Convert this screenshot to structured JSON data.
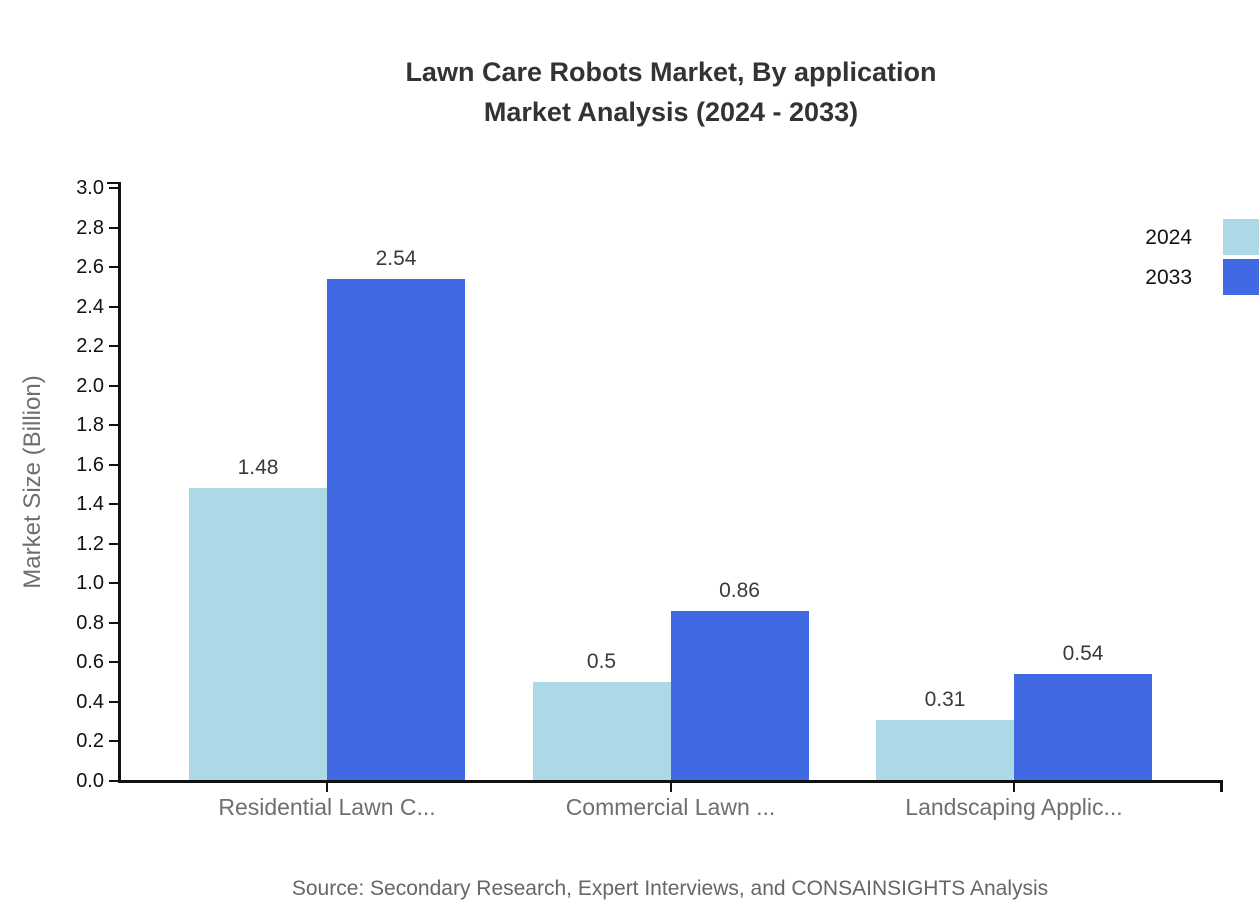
{
  "title": {
    "line1": "Lawn Care Robots Market, By application",
    "line2": "Market Analysis (2024 - 2033)"
  },
  "source": "Source: Secondary Research, Expert Interviews, and CONSAINSIGHTS Analysis",
  "legend": {
    "position": "top-right",
    "items": [
      {
        "label": "2024",
        "color": "#ADD8E6"
      },
      {
        "label": "2033",
        "color": "#4169E1"
      }
    ]
  },
  "chart_data": {
    "type": "bar",
    "title": "Lawn Care Robots Market, By application Market Analysis (2024 - 2033)",
    "categories": [
      "Residential Lawn C...",
      "Commercial Lawn ...",
      "Landscaping Applic..."
    ],
    "series": [
      {
        "name": "2024",
        "color": "#ADD8E6",
        "values": [
          1.48,
          0.5,
          0.31
        ]
      },
      {
        "name": "2033",
        "color": "#4169E1",
        "values": [
          2.54,
          0.86,
          0.54
        ]
      }
    ],
    "xlabel": "",
    "ylabel": "Market Size (Billion)",
    "ylim": [
      0,
      3.0
    ],
    "y_ticks": [
      "0.0",
      "0.2",
      "0.4",
      "0.6",
      "0.8",
      "1.0",
      "1.2",
      "1.4",
      "1.6",
      "1.8",
      "2.0",
      "2.2",
      "2.4",
      "2.6",
      "2.8",
      "3.0"
    ],
    "grid": false,
    "legend_position": "right-top",
    "bar_value_labels": [
      "1.48",
      "2.54",
      "0.5",
      "0.86",
      "0.31",
      "0.54"
    ]
  }
}
